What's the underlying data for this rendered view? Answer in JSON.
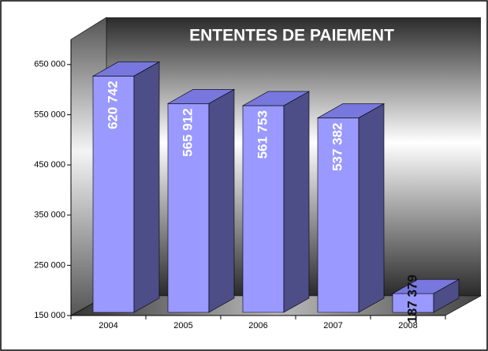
{
  "chart_data": {
    "type": "bar3d",
    "title": "ENTENTES DE PAIEMENT",
    "categories": [
      "2004",
      "2005",
      "2006",
      "2007",
      "2008"
    ],
    "values": [
      620742,
      565912,
      561753,
      537382,
      187379
    ],
    "value_labels": [
      "620 742",
      "565 912",
      "561 753",
      "537 382",
      "187 379"
    ],
    "color": "#9999ff",
    "ylim": [
      150000,
      700000
    ],
    "yticks": [
      {
        "value": 150000,
        "label": "150 000"
      },
      {
        "value": 250000,
        "label": "250 000"
      },
      {
        "value": 350000,
        "label": "350 000"
      },
      {
        "value": 450000,
        "label": "450 000"
      },
      {
        "value": 550000,
        "label": "550 000"
      },
      {
        "value": 650000,
        "label": "650 000"
      }
    ]
  }
}
